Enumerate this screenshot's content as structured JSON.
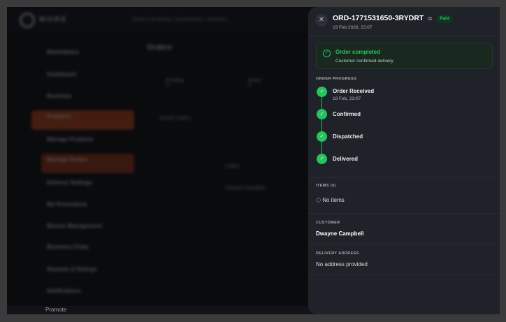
{
  "background": {
    "logo_text": "MORE",
    "search_placeholder": "Search products, businesses, services...",
    "sidebar": [
      {
        "label": "Marketplace"
      },
      {
        "label": "Dashboard"
      },
      {
        "label": "Business"
      },
      {
        "label": "Products"
      },
      {
        "label": "Manage Products"
      },
      {
        "label": "Manage Orders"
      },
      {
        "label": "Delivery Settings"
      },
      {
        "label": "My Promotions"
      },
      {
        "label": "Banner Management"
      },
      {
        "label": "Business Chats"
      },
      {
        "label": "Reviews & Ratings"
      },
      {
        "label": "Notifications"
      },
      {
        "label": "Promote"
      }
    ],
    "page_title": "Orders",
    "stats": [
      {
        "label": "Pending",
        "value": "0"
      },
      {
        "label": "Active",
        "value": "0"
      }
    ],
    "search_orders_placeholder": "Search orders...",
    "customers": [
      "Collins",
      "Dwayne Campbell"
    ]
  },
  "panel": {
    "order_id": "ORD-1771531650-3RYDRT",
    "date": "19 Feb 2026, 23:07",
    "payment_badge": "Paid",
    "status_title": "Order completed",
    "status_subtitle": "Customer confirmed delivery",
    "progress_label": "ORDER PROGRESS",
    "steps": [
      {
        "label": "Order Received",
        "time": "19 Feb, 23:07"
      },
      {
        "label": "Confirmed"
      },
      {
        "label": "Dispatched"
      },
      {
        "label": "Delivered"
      }
    ],
    "items_label": "ITEMS (0)",
    "items_empty": "No items",
    "customer_label": "CUSTOMER",
    "customer_name": "Dwayne Campbell",
    "address_label": "DELIVERY ADDRESS",
    "address_value": "No address provided",
    "accent": "#22c55e"
  }
}
